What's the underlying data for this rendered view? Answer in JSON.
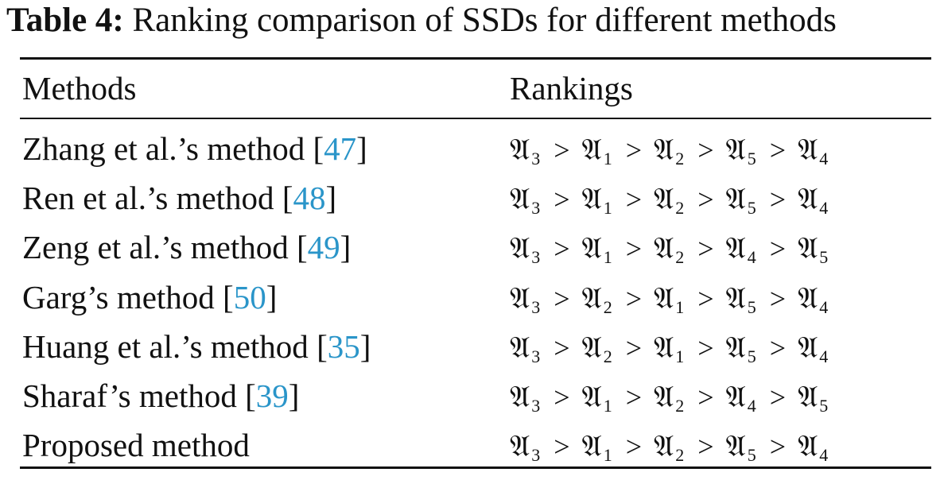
{
  "caption": {
    "label": "Table 4:",
    "text": "Ranking comparison of SSDs for different methods"
  },
  "header": {
    "methods": "Methods",
    "rankings": "Rankings"
  },
  "alt_symbol": "𝔄",
  "gt_symbol": ">",
  "rows": [
    {
      "method": "Zhang et al.’s method",
      "ref": "47",
      "ranking": [
        3,
        1,
        2,
        5,
        4
      ]
    },
    {
      "method": "Ren et al.’s method",
      "ref": "48",
      "ranking": [
        3,
        1,
        2,
        5,
        4
      ]
    },
    {
      "method": "Zeng et al.’s method",
      "ref": "49",
      "ranking": [
        3,
        1,
        2,
        4,
        5
      ]
    },
    {
      "method": "Garg’s method",
      "ref": "50",
      "ranking": [
        3,
        2,
        1,
        5,
        4
      ]
    },
    {
      "method": "Huang et al.’s method",
      "ref": "35",
      "ranking": [
        3,
        2,
        1,
        5,
        4
      ]
    },
    {
      "method": "Sharaf’s method",
      "ref": "39",
      "ranking": [
        3,
        1,
        2,
        4,
        5
      ]
    },
    {
      "method": "Proposed method",
      "ref": null,
      "ranking": [
        3,
        1,
        2,
        5,
        4
      ]
    }
  ]
}
